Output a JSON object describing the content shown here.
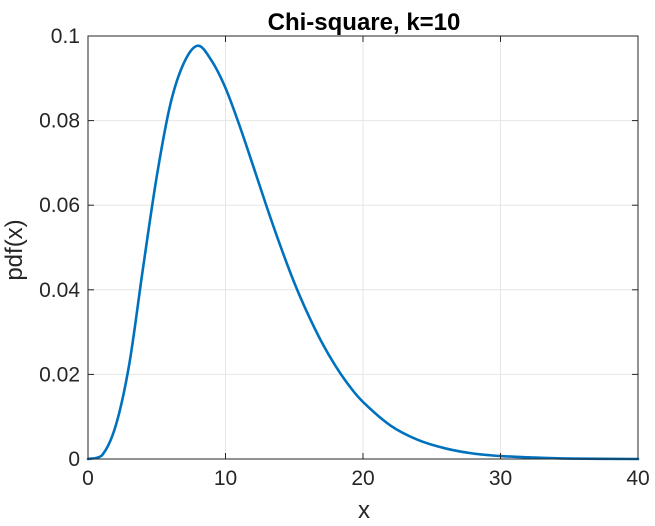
{
  "chart_data": {
    "type": "line",
    "title": "Chi-square, k=10",
    "xlabel": "x",
    "ylabel": "pdf(x)",
    "xlim": [
      0,
      40
    ],
    "ylim": [
      0,
      0.1
    ],
    "grid": true,
    "x_ticks": [
      0,
      10,
      20,
      30,
      40
    ],
    "x_tick_labels": [
      "0",
      "10",
      "20",
      "30",
      "40"
    ],
    "y_ticks": [
      0,
      0.02,
      0.04,
      0.06,
      0.08,
      0.1
    ],
    "y_tick_labels": [
      "0",
      "0.02",
      "0.04",
      "0.06",
      "0.08",
      "0.1"
    ],
    "series": [
      {
        "color": "#0072BD",
        "x": [
          0,
          1,
          2,
          3,
          4,
          5,
          6,
          7,
          8,
          9,
          10,
          11,
          12,
          13,
          14,
          15,
          16,
          17,
          18,
          19,
          20,
          22,
          24,
          26,
          28,
          30,
          32,
          35,
          40
        ],
        "y": [
          0,
          0.0008,
          0.0077,
          0.0224,
          0.0451,
          0.0668,
          0.084,
          0.0938,
          0.0977,
          0.0941,
          0.0877,
          0.079,
          0.0694,
          0.0596,
          0.0503,
          0.0417,
          0.0342,
          0.0276,
          0.022,
          0.0173,
          0.0135,
          0.0079,
          0.0045,
          0.0025,
          0.0013,
          0.0007,
          0.0004,
          0.0001,
          0.0
        ]
      }
    ]
  }
}
